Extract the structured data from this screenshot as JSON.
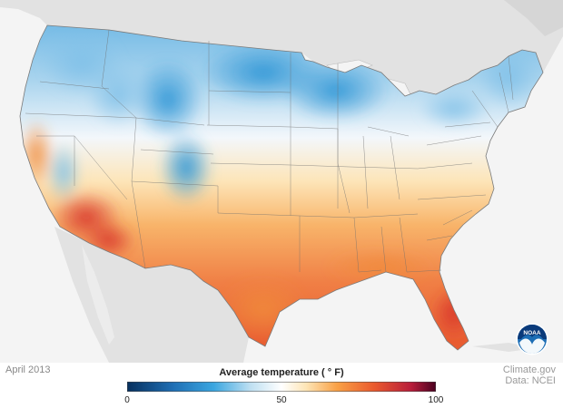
{
  "map": {
    "date": "April 2013",
    "legend": {
      "title": "Average temperature ( ° F)",
      "min": 0,
      "mid": 50,
      "max": 100,
      "tick_labels": [
        "0",
        "50",
        "100"
      ],
      "unit": "°F",
      "colors": [
        "#07305e",
        "#1f6fb5",
        "#3aa6e0",
        "#bfe0f2",
        "#ffffff",
        "#fde5b6",
        "#f9a146",
        "#ea5a2e",
        "#b81c3a",
        "#4a0020"
      ]
    },
    "credit": {
      "line1": "Climate.gov",
      "line2": "Data: NCEI"
    },
    "logo": {
      "name": "noaa-icon",
      "text": "NOAA"
    },
    "colors": {
      "land_outside": "#e2e2e2",
      "water": "#f4f4f4",
      "state_border": "#6e6e6e"
    }
  }
}
